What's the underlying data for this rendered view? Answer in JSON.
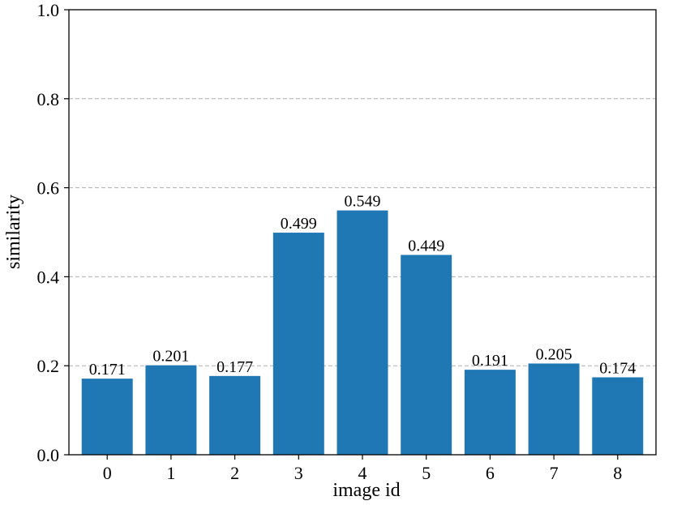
{
  "chart_data": {
    "type": "bar",
    "categories": [
      "0",
      "1",
      "2",
      "3",
      "4",
      "5",
      "6",
      "7",
      "8"
    ],
    "values": [
      0.171,
      0.201,
      0.177,
      0.499,
      0.549,
      0.449,
      0.191,
      0.205,
      0.174
    ],
    "data_labels": [
      "0.171",
      "0.201",
      "0.177",
      "0.499",
      "0.549",
      "0.449",
      "0.191",
      "0.205",
      "0.174"
    ],
    "xlabel": "image id",
    "ylabel": "similarity",
    "ylim": [
      0,
      1.0
    ],
    "yticks": [
      "0.0",
      "0.2",
      "0.4",
      "0.6",
      "0.8",
      "1.0"
    ],
    "grid": "y-dashed",
    "bar_color": "#1f77b4",
    "grid_color": "#b0b0b0"
  }
}
